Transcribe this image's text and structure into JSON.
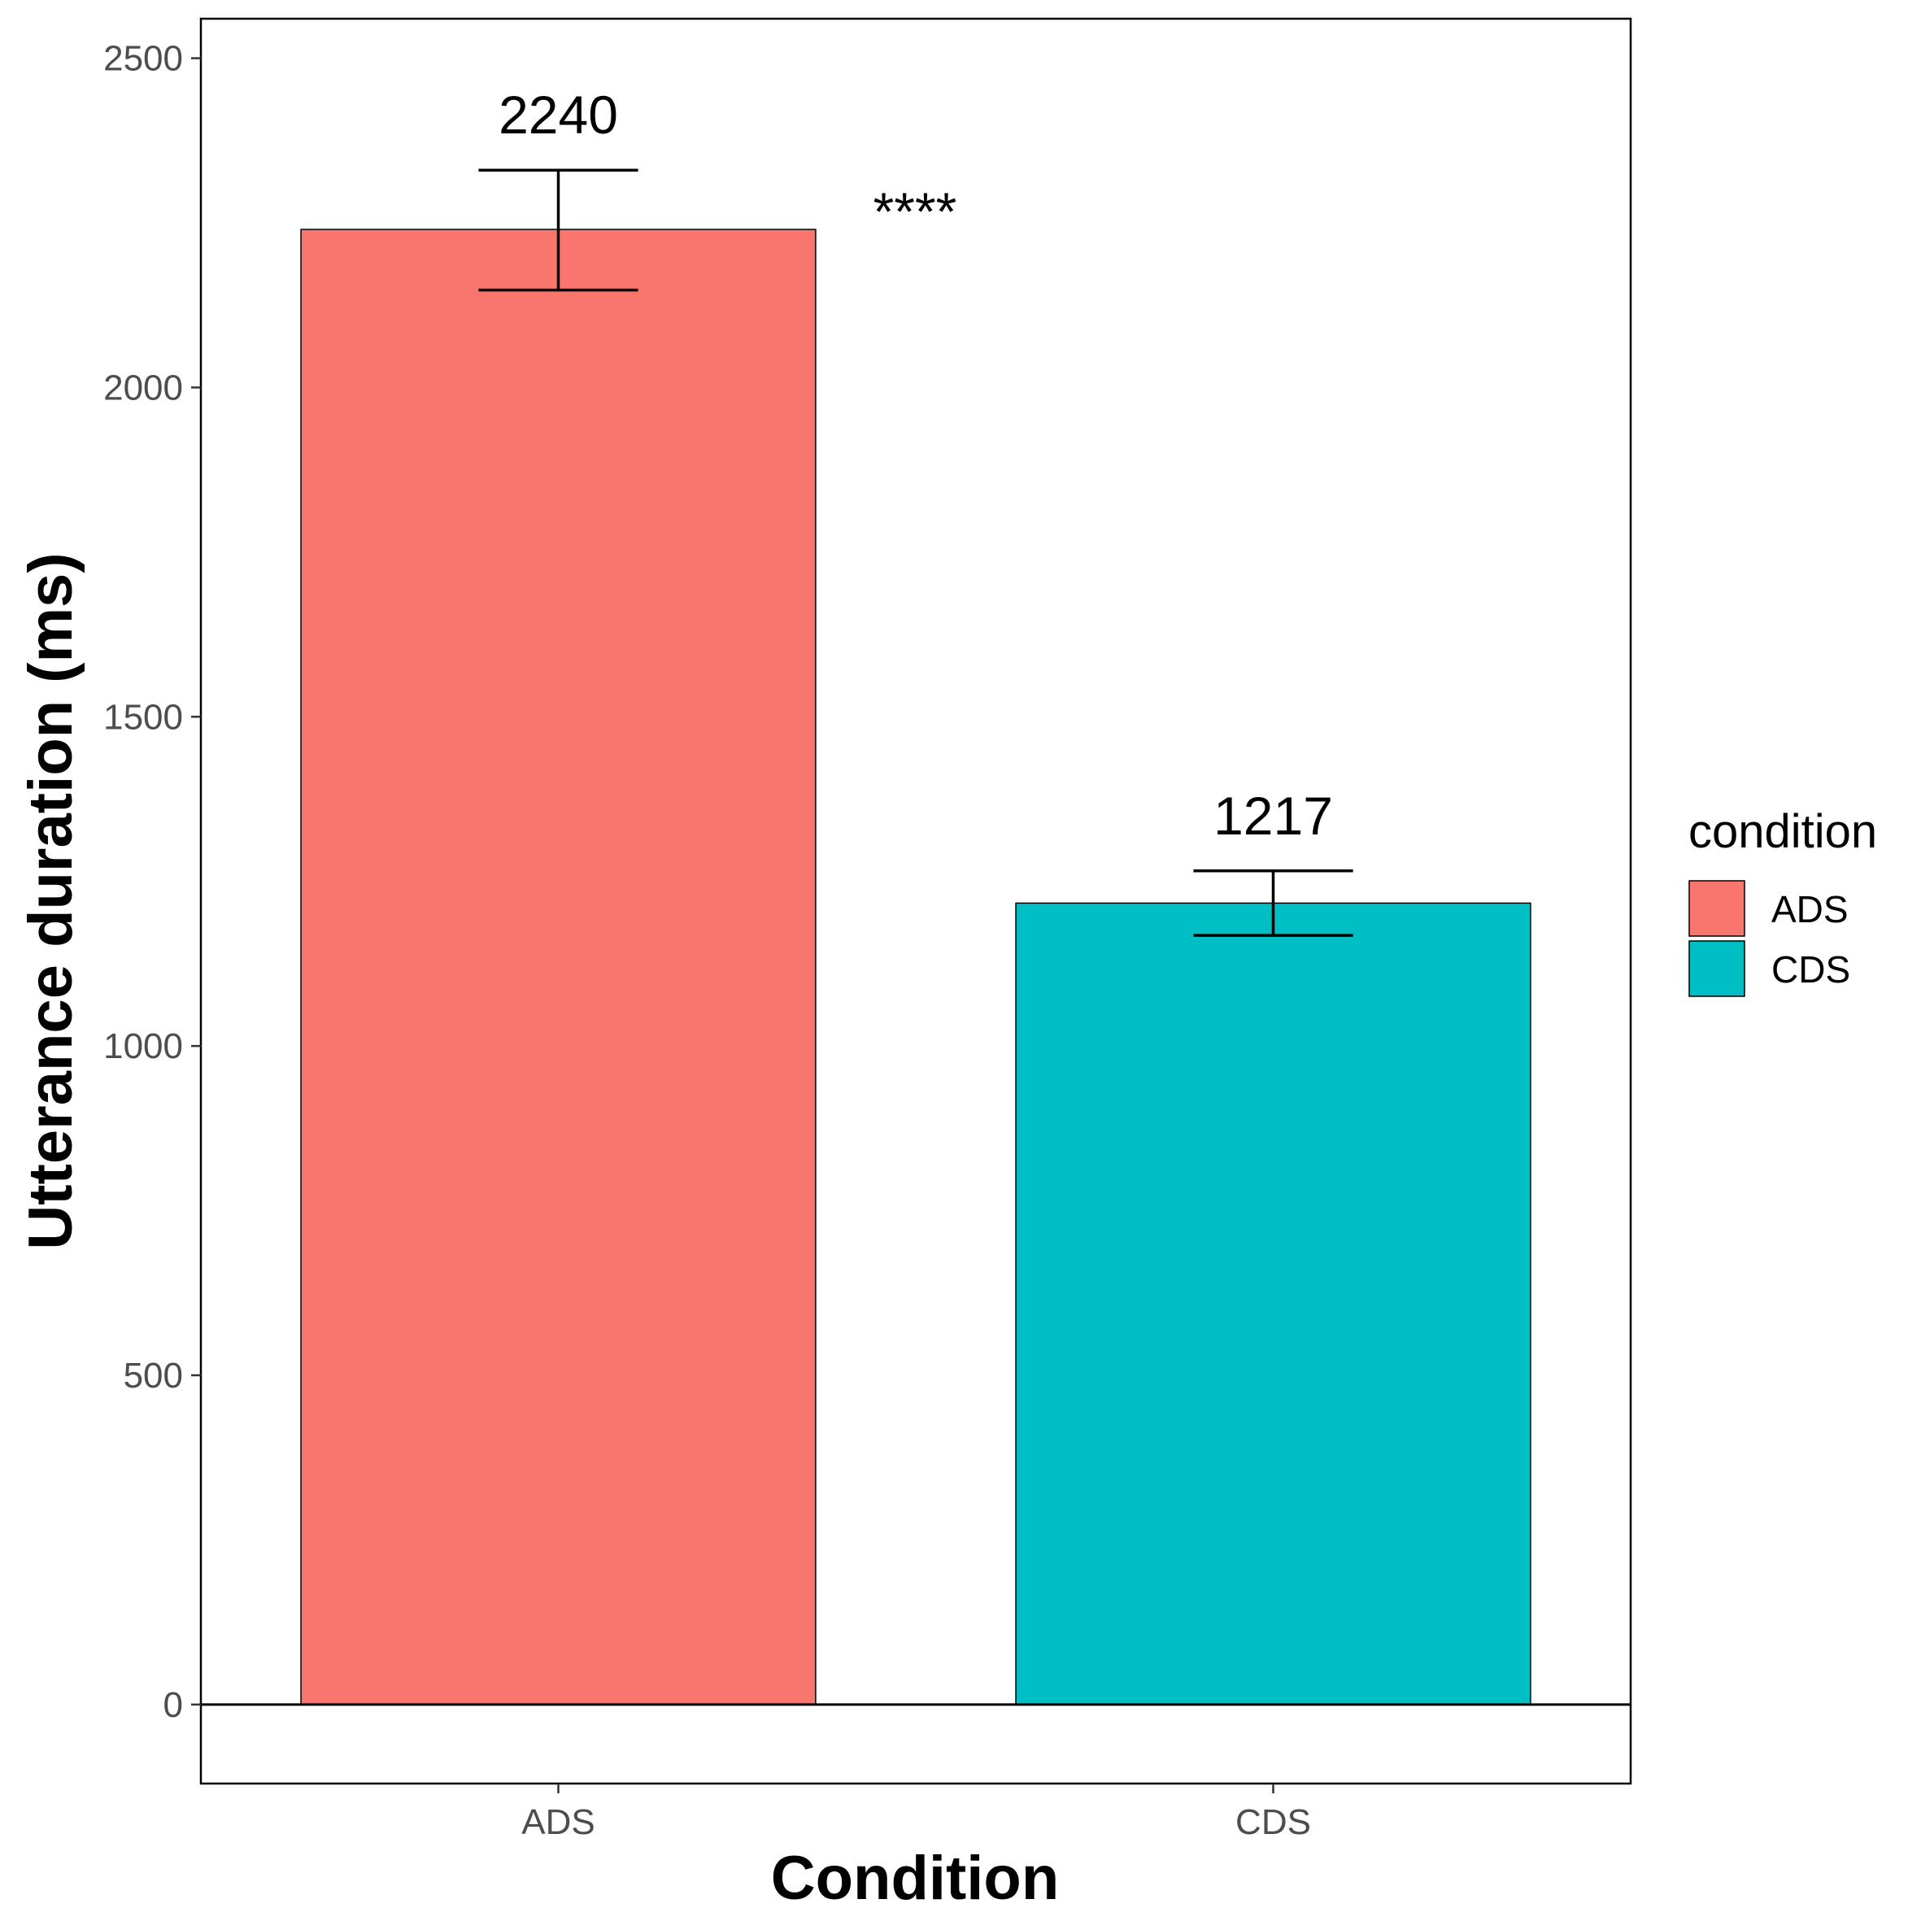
{
  "chart_data": {
    "type": "bar",
    "categories": [
      "ADS",
      "CDS"
    ],
    "values": [
      2240,
      1217
    ],
    "error_bars": [
      {
        "low": 2148,
        "high": 2330
      },
      {
        "low": 1168,
        "high": 1266
      }
    ],
    "data_labels": [
      "2240",
      "1217"
    ],
    "significance": "****",
    "xlabel": "Condition",
    "ylabel": "Utterance duration (ms)",
    "ylim": [
      -120,
      2560
    ],
    "yticks": [
      0,
      500,
      1000,
      1500,
      2000,
      2500
    ],
    "grid": false,
    "colors": [
      "#F8766D",
      "#00BFC4"
    ],
    "legend": {
      "title": "condition",
      "placement": "right",
      "entries": [
        "ADS",
        "CDS"
      ]
    }
  }
}
